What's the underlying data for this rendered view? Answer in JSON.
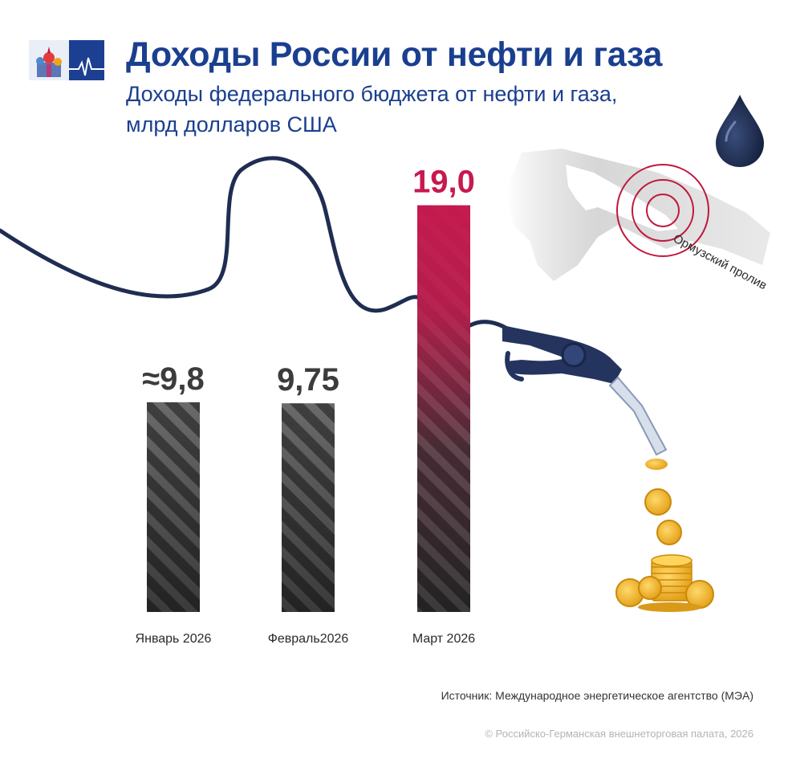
{
  "header": {
    "title": "Доходы России от нефти и газа",
    "subtitle_line1": "Доходы федерального бюджета от нефти и газа,",
    "subtitle_line2": "млрд долларов США"
  },
  "map": {
    "label": "Ормузский пролив"
  },
  "footer": {
    "source": "Источник: Международное энергетическое агентство (МЭА)",
    "copyright": "© Российско-Германская внешнеторговая палата, 2026"
  },
  "colors": {
    "title": "#1a3f8f",
    "bar_dark": "#3c3c3c",
    "bar_highlight": "#c8194f",
    "hose": "#1f2d52",
    "coin": "#f0b323",
    "hormuz_circles": "#c0183c"
  },
  "chart_data": {
    "type": "bar",
    "categories": [
      "Январь 2026",
      "Февраль2026",
      "Март 2026"
    ],
    "values": [
      9.8,
      9.75,
      19.0
    ],
    "value_labels": [
      "≈9,8",
      "9,75",
      "19,0"
    ],
    "highlight_index": 2,
    "ylim": [
      0,
      20
    ],
    "grid": false,
    "xlabel": "",
    "ylabel": ""
  }
}
